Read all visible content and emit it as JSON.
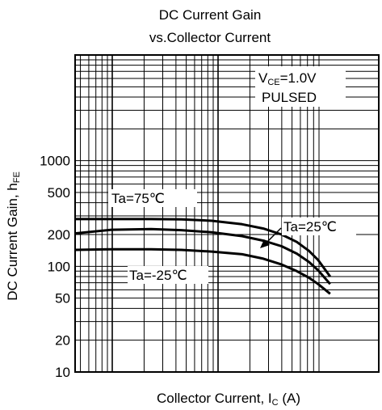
{
  "chart_data": {
    "type": "line",
    "title_line1": "DC Current Gain",
    "title_line2": "vs.Collector Current",
    "xlabel": {
      "main": "Collector Current, I",
      "sub": "C",
      "unit": " (A)"
    },
    "ylabel": {
      "main": "DC Current Gain, h",
      "sub": "FE"
    },
    "x_scale": "log",
    "y_scale": "log",
    "ylim": [
      10,
      10000
    ],
    "y_ticks": [
      {
        "value": 10,
        "label": "10"
      },
      {
        "value": 20,
        "label": "20"
      },
      {
        "value": 50,
        "label": "50"
      },
      {
        "value": 100,
        "label": "100"
      },
      {
        "value": 200,
        "label": "200"
      },
      {
        "value": 500,
        "label": "500"
      },
      {
        "value": 1000,
        "label": "1000"
      }
    ],
    "conditions": {
      "vce_prefix": "V",
      "vce_sub": "CE",
      "vce_value": "=1.0V",
      "mode": "PULSED"
    },
    "grid": true,
    "series": [
      {
        "name": "Ta=75℃",
        "label": "Ta=75℃",
        "x": [
          0,
          0.12,
          0.25,
          0.35,
          0.45,
          0.55,
          0.62,
          0.68,
          0.73,
          0.77,
          0.8,
          0.84
        ],
        "values": [
          280,
          280,
          280,
          278,
          270,
          250,
          228,
          200,
          170,
          140,
          115,
          80
        ]
      },
      {
        "name": "Ta=25℃",
        "label": "Ta=25℃",
        "x": [
          0,
          0.12,
          0.25,
          0.35,
          0.45,
          0.55,
          0.62,
          0.68,
          0.73,
          0.77,
          0.8,
          0.84
        ],
        "values": [
          205,
          222,
          225,
          220,
          210,
          193,
          175,
          155,
          132,
          110,
          92,
          68
        ]
      },
      {
        "name": "Ta=-25℃",
        "label": "Ta=-25℃",
        "x": [
          0,
          0.12,
          0.25,
          0.35,
          0.45,
          0.55,
          0.62,
          0.68,
          0.73,
          0.77,
          0.8,
          0.84
        ],
        "values": [
          143,
          145,
          145,
          143,
          138,
          130,
          118,
          104,
          90,
          78,
          68,
          55
        ]
      }
    ]
  }
}
